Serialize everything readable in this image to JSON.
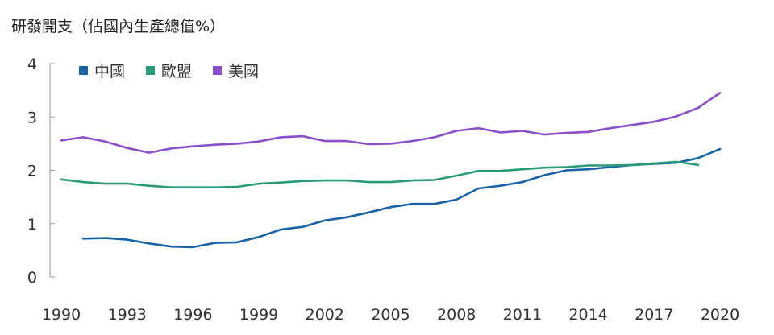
{
  "chart_data": {
    "type": "line",
    "title": "研發開支（佔國內生產總值%）",
    "xlabel": "",
    "ylabel": "",
    "xlim": [
      1990,
      2020
    ],
    "ylim": [
      0,
      4
    ],
    "x_ticks": [
      "1990",
      "1993",
      "1996",
      "1999",
      "2002",
      "2005",
      "2008",
      "2011",
      "2014",
      "2017",
      "2020"
    ],
    "y_ticks": [
      "0",
      "1",
      "2",
      "3",
      "4"
    ],
    "series": [
      {
        "name": "中國",
        "color": "#1a62a6",
        "x": [
          1991,
          1992,
          1993,
          1994,
          1995,
          1996,
          1997,
          1998,
          1999,
          2000,
          2001,
          2002,
          2003,
          2004,
          2005,
          2006,
          2007,
          2008,
          2009,
          2010,
          2011,
          2012,
          2013,
          2014,
          2015,
          2016,
          2017,
          2018,
          2019,
          2020
        ],
        "values": [
          0.72,
          0.73,
          0.7,
          0.63,
          0.57,
          0.56,
          0.64,
          0.65,
          0.75,
          0.89,
          0.94,
          1.06,
          1.12,
          1.21,
          1.31,
          1.37,
          1.37,
          1.45,
          1.66,
          1.71,
          1.78,
          1.91,
          2.0,
          2.02,
          2.06,
          2.1,
          2.12,
          2.14,
          2.23,
          2.4
        ]
      },
      {
        "name": "歐盟",
        "color": "#2a9a78",
        "x": [
          1990,
          1991,
          1992,
          1993,
          1994,
          1995,
          1996,
          1997,
          1998,
          1999,
          2000,
          2001,
          2002,
          2003,
          2004,
          2005,
          2006,
          2007,
          2008,
          2009,
          2010,
          2011,
          2012,
          2013,
          2014,
          2015,
          2016,
          2017,
          2018,
          2019
        ],
        "values": [
          1.83,
          1.78,
          1.75,
          1.75,
          1.71,
          1.68,
          1.68,
          1.68,
          1.69,
          1.75,
          1.77,
          1.8,
          1.81,
          1.81,
          1.78,
          1.78,
          1.81,
          1.82,
          1.9,
          1.99,
          1.99,
          2.02,
          2.05,
          2.06,
          2.09,
          2.09,
          2.1,
          2.13,
          2.16,
          2.1
        ]
      },
      {
        "name": "美國",
        "color": "#8a4fc8",
        "x": [
          1990,
          1991,
          1992,
          1993,
          1994,
          1995,
          1996,
          1997,
          1998,
          1999,
          2000,
          2001,
          2002,
          2003,
          2004,
          2005,
          2006,
          2007,
          2008,
          2009,
          2010,
          2011,
          2012,
          2013,
          2014,
          2015,
          2016,
          2017,
          2018,
          2019,
          2020
        ],
        "values": [
          2.56,
          2.62,
          2.54,
          2.42,
          2.33,
          2.41,
          2.45,
          2.48,
          2.5,
          2.54,
          2.62,
          2.64,
          2.55,
          2.55,
          2.49,
          2.5,
          2.55,
          2.62,
          2.74,
          2.79,
          2.71,
          2.74,
          2.67,
          2.7,
          2.72,
          2.79,
          2.85,
          2.91,
          3.01,
          3.17,
          3.45
        ]
      }
    ]
  }
}
